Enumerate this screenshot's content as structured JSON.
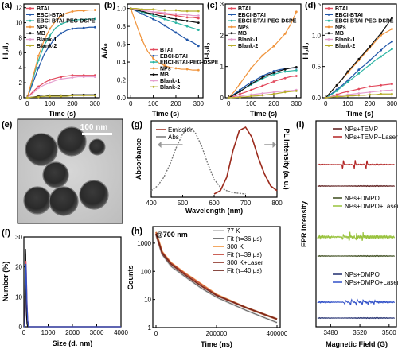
{
  "colors": {
    "BTAI": "#e24b5e",
    "EBCI-BTAI": "#1f55a8",
    "EBCI-BTAI-PEG-DSPE": "#2bb5a3",
    "NPs": "#f0933a",
    "MB": "#111111",
    "Blank-1": "#e6a0cf",
    "Blank-2": "#b8ad2c"
  },
  "panel_a": {
    "label": "(a)",
    "xlabel": "Time (s)",
    "ylabel": "I-I₀/I₀",
    "xticks": [
      "0",
      "100",
      "200",
      "300"
    ],
    "yticks": [
      "0",
      "2",
      "4",
      "6",
      "8",
      "10",
      "12"
    ],
    "legend": [
      "BTAI",
      "EBCI-BTAI",
      "EBCI-BTAI-PEG-DSPE",
      "NPs",
      "MB",
      "Blank-1",
      "Blank-2"
    ]
  },
  "panel_b": {
    "label": "(b)",
    "xlabel": "Time (s)",
    "ylabel": "A/A₀",
    "xticks": [
      "0",
      "100",
      "200",
      "300"
    ],
    "yticks": [
      "0.0",
      "0.2",
      "0.4",
      "0.6",
      "0.8",
      "1.0"
    ],
    "legend": [
      "BTAI",
      "EBCI-BTAI",
      "EBCI-BTAI-PEG-DSPE",
      "NPs",
      "MB",
      "Blank-1",
      "Blank-2"
    ]
  },
  "panel_c": {
    "label": "(c)",
    "xlabel": "Time (s)",
    "ylabel": "I-I₀/I₀",
    "xticks": [
      "0",
      "100",
      "200",
      "300"
    ],
    "yticks": [
      "0",
      "1",
      "2",
      "3"
    ],
    "legend": [
      "BTAI",
      "EBCI-BTAI",
      "EBCI-BTAI-PEG-DSPE",
      "NPs",
      "MB",
      "Blank-1",
      "Blank-2"
    ]
  },
  "panel_d": {
    "label": "(d)",
    "xlabel": "Time (s)",
    "ylabel": "I-I₀/I₀",
    "xticks": [
      "0",
      "100",
      "200",
      "300"
    ],
    "yticks": [
      "0.0",
      "0.5",
      "1.0",
      "1.5"
    ],
    "legend": [
      "BTAI",
      "EBCI-BTAI",
      "EBCI-BTAI-PEG-DSPE",
      "NPs",
      "MB",
      "Blank-1",
      "Blank-2"
    ]
  },
  "panel_e": {
    "label": "(e)",
    "scale_bar": "100 nm"
  },
  "panel_f": {
    "label": "(f)",
    "xlabel": "Size (d. nm)",
    "ylabel": "Number (%)",
    "xticks": [
      "0",
      "1000",
      "2000",
      "3000",
      "4000"
    ],
    "yticks": [
      "0",
      "10",
      "20",
      "30"
    ]
  },
  "panel_g": {
    "label": "(g)",
    "xlabel": "Wavelength (nm)",
    "ylabel_left": "Absorbance",
    "ylabel_right": "PL Intensity (a. u.)",
    "xticks": [
      "400",
      "500",
      "600",
      "700",
      "800"
    ],
    "legend": [
      "Emission",
      "Abs"
    ]
  },
  "panel_h": {
    "label": "(h)",
    "xlabel": "Time (ns)",
    "ylabel": "Counts",
    "annotation": "@700 nm",
    "xticks": [
      "0",
      "200000",
      "400000"
    ],
    "yticks": [
      "1",
      "10",
      "100",
      "1000"
    ],
    "legend": [
      "77 K",
      "Fit (τ=36 μs)",
      "300 K",
      "Fit (τ=39 μs)",
      "300 K+Laser",
      "Fit (τ=40 μs)"
    ]
  },
  "panel_i": {
    "label": "(i)",
    "xlabel": "Magnetic Field (G)",
    "ylabel": "EPR Intensity",
    "xticks": [
      "3480",
      "3520",
      "3560"
    ],
    "legend_top": [
      "NPs+TEMP",
      "NPs+TEMP+Laser"
    ],
    "legend_mid": [
      "NPs+DMPO",
      "NPs+DMPO+Laser"
    ],
    "legend_bot": [
      "NPs+DMPO",
      "NPs+DMPO+Laser"
    ]
  },
  "chart_data": [
    {
      "type": "line",
      "panel": "a",
      "x": [
        0,
        25,
        50,
        75,
        100,
        125,
        150,
        175,
        200,
        225,
        250,
        275,
        300
      ],
      "ylim": [
        0,
        12
      ],
      "series": [
        {
          "name": "BTAI",
          "values": [
            0,
            0.8,
            1.5,
            2.0,
            2.4,
            2.6,
            2.8,
            2.9,
            3.0,
            3.0,
            3.0,
            3.0,
            3.0
          ]
        },
        {
          "name": "EBCI-BTAI",
          "values": [
            0,
            2.0,
            4.0,
            5.8,
            7.0,
            8.0,
            8.6,
            9.0,
            9.2,
            9.3,
            9.3,
            9.4,
            9.4
          ]
        },
        {
          "name": "EBCI-BTAI-PEG-DSPE",
          "values": [
            0,
            2.5,
            5.0,
            7.0,
            8.3,
            9.3,
            9.8,
            10.1,
            10.3,
            10.4,
            10.4,
            10.5,
            10.5
          ]
        },
        {
          "name": "NPs",
          "values": [
            0,
            2.8,
            5.6,
            7.7,
            9.2,
            10.2,
            10.9,
            11.3,
            11.5,
            11.6,
            11.6,
            11.7,
            11.7
          ]
        },
        {
          "name": "MB",
          "values": [
            0,
            0.1,
            0.2,
            0.2,
            0.3,
            0.3,
            0.3,
            0.3,
            0.4,
            0.4,
            0.4,
            0.4,
            0.4
          ]
        },
        {
          "name": "Blank-1",
          "values": [
            0,
            0.6,
            1.3,
            1.7,
            2.0,
            2.3,
            2.5,
            2.6,
            2.7,
            2.8,
            2.8,
            2.8,
            2.8
          ]
        },
        {
          "name": "Blank-2",
          "values": [
            0,
            0.1,
            0.1,
            0.2,
            0.2,
            0.2,
            0.2,
            0.2,
            0.3,
            0.3,
            0.3,
            0.3,
            0.3
          ]
        }
      ]
    },
    {
      "type": "line",
      "panel": "b",
      "x": [
        0,
        25,
        50,
        75,
        100,
        125,
        150,
        175,
        200,
        225,
        250,
        275,
        300
      ],
      "ylim": [
        0,
        1.05
      ],
      "series": [
        {
          "name": "BTAI",
          "values": [
            1.0,
            0.99,
            0.98,
            0.97,
            0.96,
            0.95,
            0.94,
            0.93,
            0.92,
            0.91,
            0.9,
            0.9,
            0.89
          ]
        },
        {
          "name": "EBCI-BTAI",
          "values": [
            1.0,
            0.97,
            0.94,
            0.91,
            0.88,
            0.85,
            0.81,
            0.77,
            0.73,
            0.69,
            0.65,
            0.62,
            0.58
          ]
        },
        {
          "name": "EBCI-BTAI-PEG-DSPE",
          "values": [
            1.0,
            0.98,
            0.96,
            0.94,
            0.92,
            0.9,
            0.88,
            0.86,
            0.84,
            0.82,
            0.8,
            0.78,
            0.76
          ]
        },
        {
          "name": "NPs",
          "values": [
            1.0,
            0.82,
            0.65,
            0.52,
            0.44,
            0.39,
            0.36,
            0.34,
            0.33,
            0.32,
            0.32,
            0.31,
            0.31
          ]
        },
        {
          "name": "MB",
          "values": [
            1.0,
            0.98,
            0.97,
            0.95,
            0.94,
            0.92,
            0.91,
            0.89,
            0.88,
            0.87,
            0.86,
            0.85,
            0.84
          ]
        },
        {
          "name": "Blank-1",
          "values": [
            1.0,
            0.99,
            0.98,
            0.97,
            0.96,
            0.96,
            0.95,
            0.94,
            0.94,
            0.93,
            0.93,
            0.92,
            0.92
          ]
        },
        {
          "name": "Blank-2",
          "values": [
            1.0,
            1.0,
            0.99,
            0.99,
            0.99,
            0.98,
            0.98,
            0.98,
            0.98,
            0.97,
            0.97,
            0.97,
            0.97
          ]
        }
      ]
    },
    {
      "type": "line",
      "panel": "c",
      "x": [
        0,
        25,
        50,
        75,
        100,
        125,
        150,
        175,
        200,
        225,
        250,
        275,
        300
      ],
      "ylim": [
        0,
        3
      ],
      "series": [
        {
          "name": "BTAI",
          "values": [
            0,
            0.05,
            0.12,
            0.18,
            0.25,
            0.32,
            0.38,
            0.45,
            0.52,
            0.58,
            0.63,
            0.68,
            0.7
          ]
        },
        {
          "name": "EBCI-BTAI",
          "values": [
            0,
            0.12,
            0.25,
            0.38,
            0.5,
            0.6,
            0.7,
            0.78,
            0.85,
            0.9,
            0.93,
            0.95,
            0.96
          ]
        },
        {
          "name": "EBCI-BTAI-PEG-DSPE",
          "values": [
            0,
            0.1,
            0.2,
            0.32,
            0.42,
            0.52,
            0.61,
            0.69,
            0.75,
            0.8,
            0.84,
            0.86,
            0.88
          ]
        },
        {
          "name": "NPs",
          "values": [
            0,
            0.2,
            0.45,
            0.7,
            0.95,
            1.15,
            1.35,
            1.5,
            1.65,
            1.85,
            2.05,
            2.35,
            2.75
          ]
        },
        {
          "name": "MB",
          "values": [
            0,
            0.1,
            0.2,
            0.32,
            0.45,
            0.55,
            0.65,
            0.74,
            0.8,
            0.86,
            0.91,
            0.95,
            0.98
          ]
        },
        {
          "name": "Blank-1",
          "values": [
            0,
            0.02,
            0.05,
            0.08,
            0.1,
            0.12,
            0.14,
            0.16,
            0.18,
            0.2,
            0.22,
            0.23,
            0.25
          ]
        },
        {
          "name": "Blank-2",
          "values": [
            0,
            0.01,
            0.02,
            0.03,
            0.05,
            0.06,
            0.08,
            0.1,
            0.12,
            0.15,
            0.18,
            0.2,
            0.22
          ]
        }
      ]
    },
    {
      "type": "line",
      "panel": "d",
      "x": [
        0,
        25,
        50,
        75,
        100,
        125,
        150,
        175,
        200,
        225,
        250,
        275,
        300
      ],
      "ylim": [
        0,
        1.5
      ],
      "series": [
        {
          "name": "BTAI",
          "values": [
            0,
            0.02,
            0.05,
            0.08,
            0.1,
            0.12,
            0.14,
            0.16,
            0.18,
            0.19,
            0.2,
            0.21,
            0.22
          ]
        },
        {
          "name": "EBCI-BTAI",
          "values": [
            0,
            0.06,
            0.13,
            0.2,
            0.28,
            0.36,
            0.45,
            0.52,
            0.6,
            0.68,
            0.76,
            0.84,
            0.9
          ]
        },
        {
          "name": "EBCI-BTAI-PEG-DSPE",
          "values": [
            0,
            0.05,
            0.11,
            0.18,
            0.25,
            0.32,
            0.39,
            0.46,
            0.53,
            0.6,
            0.66,
            0.72,
            0.78
          ]
        },
        {
          "name": "NPs",
          "values": [
            0,
            0.1,
            0.2,
            0.3,
            0.4,
            0.5,
            0.6,
            0.7,
            0.8,
            0.9,
            1.0,
            1.05,
            1.1
          ]
        },
        {
          "name": "MB",
          "values": [
            0,
            0.1,
            0.2,
            0.3,
            0.42,
            0.52,
            0.62,
            0.72,
            0.82,
            0.93,
            1.03,
            1.15,
            1.28
          ]
        },
        {
          "name": "Blank-1",
          "values": [
            0,
            0.02,
            0.03,
            0.04,
            0.05,
            0.06,
            0.07,
            0.08,
            0.09,
            0.1,
            0.11,
            0.12,
            0.12
          ]
        },
        {
          "name": "Blank-2",
          "values": [
            0,
            0.01,
            0.02,
            0.02,
            0.03,
            0.03,
            0.04,
            0.04,
            0.05,
            0.05,
            0.06,
            0.06,
            0.06
          ]
        }
      ]
    },
    {
      "type": "line",
      "panel": "f",
      "x": [
        0,
        30,
        45,
        55,
        65,
        75,
        85,
        95,
        110,
        130,
        160,
        200,
        400,
        4000
      ],
      "ylim": [
        0,
        30
      ],
      "series": [
        {
          "values": [
            0,
            1,
            8,
            18,
            26,
            24,
            16,
            9,
            4,
            1,
            0,
            0,
            0,
            0
          ],
          "color": "#111111"
        },
        {
          "values": [
            0,
            0,
            4,
            10,
            16,
            20,
            22,
            20,
            15,
            8,
            2,
            0,
            0,
            0
          ],
          "color": "#e24b5e"
        },
        {
          "values": [
            0,
            0,
            3,
            9,
            15,
            19,
            21,
            19,
            14,
            7,
            2,
            0,
            0,
            0
          ],
          "color": "#3050c8"
        }
      ]
    },
    {
      "type": "line",
      "panel": "g",
      "xlim": [
        400,
        800
      ],
      "series": [
        {
          "name": "Abs",
          "x": [
            400,
            420,
            440,
            460,
            480,
            500,
            520,
            540,
            560,
            580,
            600,
            620,
            640,
            660,
            680,
            700
          ],
          "values": [
            0.05,
            0.12,
            0.25,
            0.45,
            0.7,
            0.9,
            1.0,
            0.92,
            0.72,
            0.45,
            0.22,
            0.1,
            0.05,
            0.02,
            0.01,
            0.0
          ]
        },
        {
          "name": "Emission",
          "x": [
            600,
            620,
            640,
            660,
            680,
            700,
            720,
            740,
            760,
            780,
            800
          ],
          "values": [
            0.0,
            0.05,
            0.25,
            0.65,
            0.95,
            1.0,
            0.85,
            0.55,
            0.3,
            0.12,
            0.05
          ]
        }
      ]
    },
    {
      "type": "line",
      "panel": "h",
      "xlim": [
        0,
        400000
      ],
      "ylim": [
        1,
        3000
      ],
      "yscale": "log",
      "series": [
        {
          "name": "77 K",
          "x": [
            0,
            20000,
            50000,
            100000,
            150000,
            200000,
            300000,
            400000
          ],
          "values": [
            2000,
            400,
            150,
            60,
            25,
            12,
            4,
            1.5
          ]
        },
        {
          "name": "300 K",
          "x": [
            0,
            20000,
            50000,
            100000,
            150000,
            200000,
            300000,
            400000
          ],
          "values": [
            2500,
            500,
            200,
            80,
            35,
            15,
            5,
            2
          ]
        },
        {
          "name": "300 K+Laser",
          "x": [
            0,
            20000,
            50000,
            100000,
            150000,
            200000,
            300000,
            400000
          ],
          "values": [
            2200,
            450,
            180,
            70,
            30,
            14,
            5,
            2
          ]
        }
      ]
    },
    {
      "type": "line",
      "panel": "i",
      "xlim": [
        3460,
        3570
      ],
      "series": [
        {
          "name": "NPs+TEMP",
          "values": [
            0,
            0,
            0,
            0,
            0,
            0,
            0,
            0,
            0,
            0
          ]
        },
        {
          "name": "NPs+TEMP+Laser",
          "values": [
            0,
            0,
            1,
            -1,
            0,
            1,
            -1,
            0,
            1,
            -1
          ]
        },
        {
          "name": "NPs+DMPO",
          "values": [
            0,
            0,
            0,
            0,
            0,
            0,
            0,
            0,
            0,
            0
          ]
        },
        {
          "name": "NPs+DMPO+Laser",
          "values": [
            0,
            0.3,
            -0.3,
            0.5,
            -0.5,
            0.8,
            -0.8,
            0.4,
            -0.4,
            0
          ]
        }
      ]
    }
  ]
}
